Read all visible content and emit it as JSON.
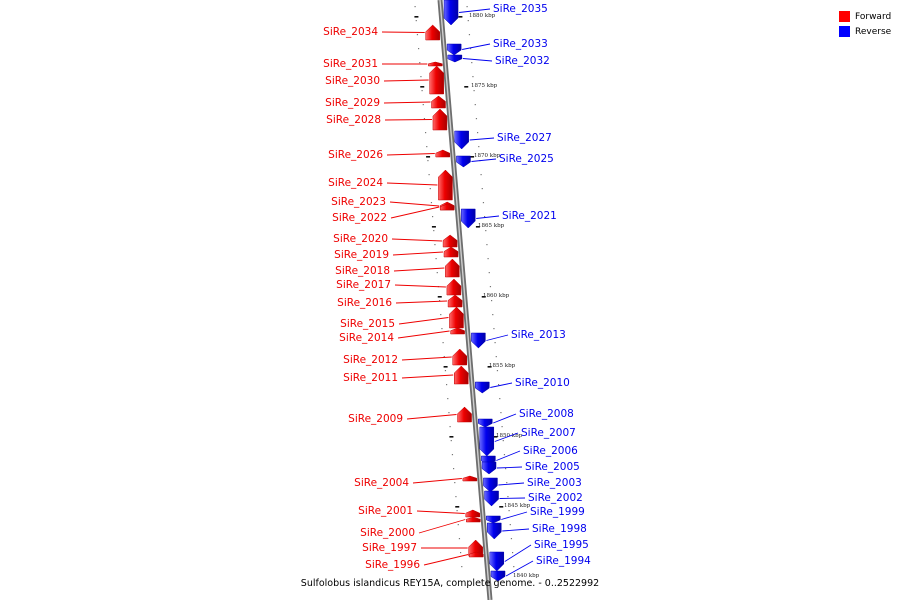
{
  "legend": {
    "forward_label": "Forward",
    "reverse_label": "Reverse",
    "forward_color": "#ff0000",
    "reverse_color": "#0000ff"
  },
  "caption": "Sulfolobus islandicus REY15A, complete genome. - 0..2522992",
  "scale_labels": [
    "1880 kbp",
    "1875 kbp",
    "1870 kbp",
    "1865 kbp",
    "1860 kbp",
    "1855 kbp",
    "1850 kbp",
    "1845 kbp",
    "1840 kbp"
  ],
  "forward_genes": [
    "SiRe_2034",
    "SiRe_2031",
    "SiRe_2030",
    "SiRe_2029",
    "SiRe_2028",
    "SiRe_2026",
    "SiRe_2024",
    "SiRe_2023",
    "SiRe_2022",
    "SiRe_2020",
    "SiRe_2019",
    "SiRe_2018",
    "SiRe_2017",
    "SiRe_2016",
    "SiRe_2015",
    "SiRe_2014",
    "SiRe_2012",
    "SiRe_2011",
    "SiRe_2009",
    "SiRe_2004",
    "SiRe_2001",
    "SiRe_2000",
    "SiRe_1997",
    "SiRe_1996"
  ],
  "reverse_genes": [
    "SiRe_2035",
    "SiRe_2033",
    "SiRe_2032",
    "SiRe_2027",
    "SiRe_2025",
    "SiRe_2021",
    "SiRe_2013",
    "SiRe_2010",
    "SiRe_2008",
    "SiRe_2007",
    "SiRe_2006",
    "SiRe_2005",
    "SiRe_2003",
    "SiRe_2002",
    "SiRe_1999",
    "SiRe_1998",
    "SiRe_1995",
    "SiRe_1994"
  ]
}
